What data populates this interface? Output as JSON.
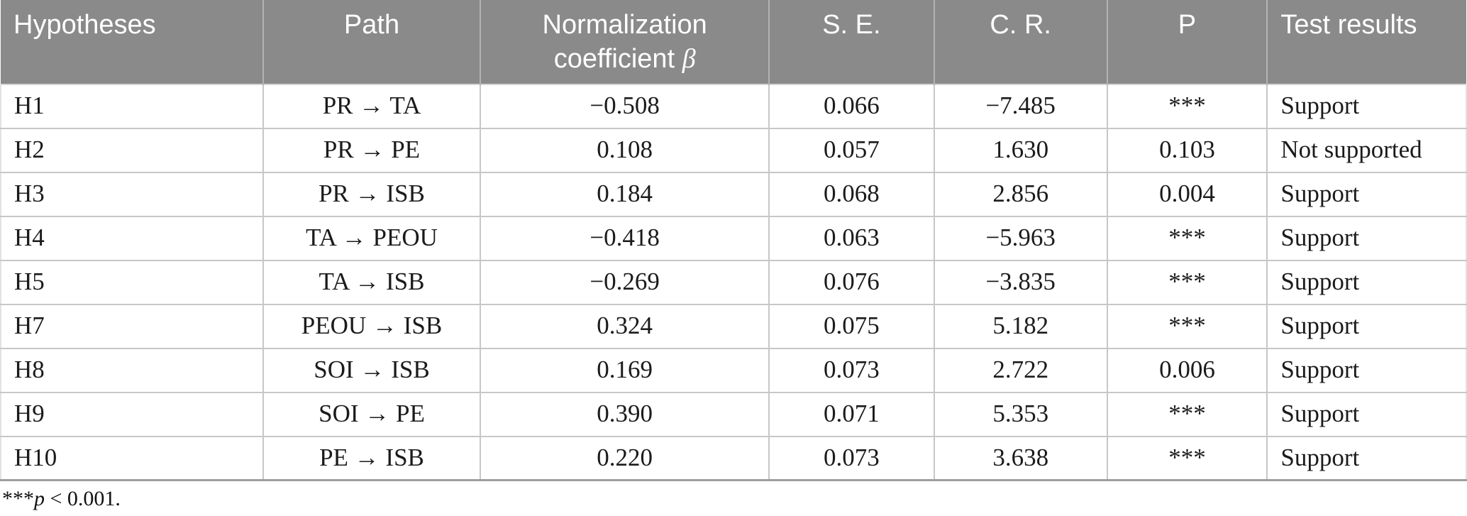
{
  "colors": {
    "header_bg": "#8a8a8a",
    "header_text": "#ffffff",
    "body_text": "#1b1b1b",
    "grid_line": "#c7c7c7",
    "header_divider": "#b3b3b3",
    "table_bottom_border": "#9e9e9e",
    "page_bg": "#ffffff"
  },
  "table": {
    "columns": [
      {
        "key": "hypothesis",
        "label": "Hypotheses",
        "align": "left",
        "width_pct": 17.89
      },
      {
        "key": "path",
        "label": "Path",
        "align": "center",
        "width_pct": 14.85
      },
      {
        "key": "coefficient",
        "label": "Normalization coefficient β",
        "align": "center",
        "width_pct": 19.68
      },
      {
        "key": "se",
        "label": "S. E.",
        "align": "center",
        "width_pct": 11.27
      },
      {
        "key": "cr",
        "label": "C. R.",
        "align": "center",
        "width_pct": 11.8
      },
      {
        "key": "p",
        "label": "P",
        "align": "center",
        "width_pct": 10.93
      },
      {
        "key": "result",
        "label": "Test results",
        "align": "left",
        "width_pct": 13.58
      }
    ],
    "rows": [
      {
        "hypothesis": "H1",
        "path": "PR → TA",
        "coefficient": "−0.508",
        "se": "0.066",
        "cr": "−7.485",
        "p": "***",
        "result": "Support"
      },
      {
        "hypothesis": "H2",
        "path": "PR → PE",
        "coefficient": "0.108",
        "se": "0.057",
        "cr": "1.630",
        "p": "0.103",
        "result": "Not supported"
      },
      {
        "hypothesis": "H3",
        "path": "PR → ISB",
        "coefficient": "0.184",
        "se": "0.068",
        "cr": "2.856",
        "p": "0.004",
        "result": "Support"
      },
      {
        "hypothesis": "H4",
        "path": "TA → PEOU",
        "coefficient": "−0.418",
        "se": "0.063",
        "cr": "−5.963",
        "p": "***",
        "result": "Support"
      },
      {
        "hypothesis": "H5",
        "path": "TA → ISB",
        "coefficient": "−0.269",
        "se": "0.076",
        "cr": "−3.835",
        "p": "***",
        "result": "Support"
      },
      {
        "hypothesis": "H7",
        "path": "PEOU → ISB",
        "coefficient": "0.324",
        "se": "0.075",
        "cr": "5.182",
        "p": "***",
        "result": "Support"
      },
      {
        "hypothesis": "H8",
        "path": "SOI → ISB",
        "coefficient": "0.169",
        "se": "0.073",
        "cr": "2.722",
        "p": "0.006",
        "result": "Support"
      },
      {
        "hypothesis": "H9",
        "path": "SOI → PE",
        "coefficient": "0.390",
        "se": "0.071",
        "cr": "5.353",
        "p": "***",
        "result": "Support"
      },
      {
        "hypothesis": "H10",
        "path": "PE → ISB",
        "coefficient": "0.220",
        "se": "0.073",
        "cr": "3.638",
        "p": "***",
        "result": "Support"
      }
    ]
  },
  "footnote": {
    "stars": "***",
    "var": "p",
    "rest": " < 0.001."
  }
}
